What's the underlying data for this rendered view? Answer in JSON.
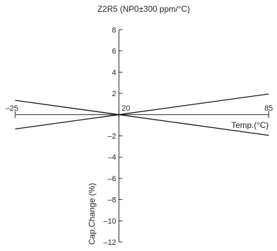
{
  "chart_data": {
    "type": "line",
    "title": "Z2R5 (NP0±300 ppm/°C)",
    "xlabel": "Temp.(°C)",
    "ylabel": "Cap.Change (%)",
    "xlim": [
      -25,
      85
    ],
    "ylim": [
      -12,
      8
    ],
    "x_ticks": [
      -25,
      20,
      85
    ],
    "x_tick_labels": [
      "–25",
      "20",
      "85"
    ],
    "y_ticks": [
      8,
      6,
      4,
      2,
      -2,
      -4,
      -6,
      -8,
      -10,
      -12
    ],
    "y_tick_labels": [
      "8",
      "6",
      "4",
      "2",
      "–2",
      "–4",
      "–6",
      "–8",
      "–10",
      "–12"
    ],
    "series": [
      {
        "x": [
          -25,
          20,
          85
        ],
        "y": [
          -1.35,
          0,
          1.95
        ]
      },
      {
        "x": [
          -25,
          20,
          85
        ],
        "y": [
          1.35,
          0,
          -1.95
        ]
      }
    ],
    "grid": false,
    "legend": "none"
  }
}
